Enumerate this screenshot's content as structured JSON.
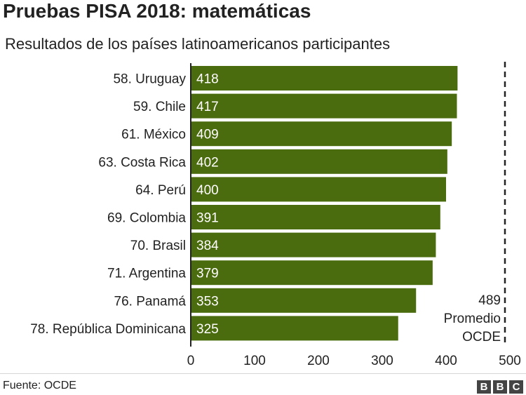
{
  "title": "Pruebas PISA 2018: matemáticas",
  "subtitle": "Resultados de los países latinoamericanos participantes",
  "source": "Fuente: OCDE",
  "logo_letters": [
    "B",
    "B",
    "C"
  ],
  "chart_data": {
    "type": "bar",
    "orientation": "horizontal",
    "categories": [
      "58. Uruguay",
      "59. Chile",
      "61. México",
      "63. Costa Rica",
      "64. Perú",
      "69. Colombia",
      "70. Brasil",
      "71. Argentina",
      "76. Panamá",
      "78. República Dominicana"
    ],
    "values": [
      418,
      417,
      409,
      402,
      400,
      391,
      384,
      379,
      353,
      325
    ],
    "xlim": [
      0,
      500
    ],
    "xticks": [
      0,
      100,
      200,
      300,
      400,
      500
    ],
    "bar_color": "#4a6b0e",
    "reference_line": {
      "value": 489,
      "label_lines": [
        "489",
        "Promedio",
        "OCDE"
      ],
      "style": "dashed"
    }
  }
}
